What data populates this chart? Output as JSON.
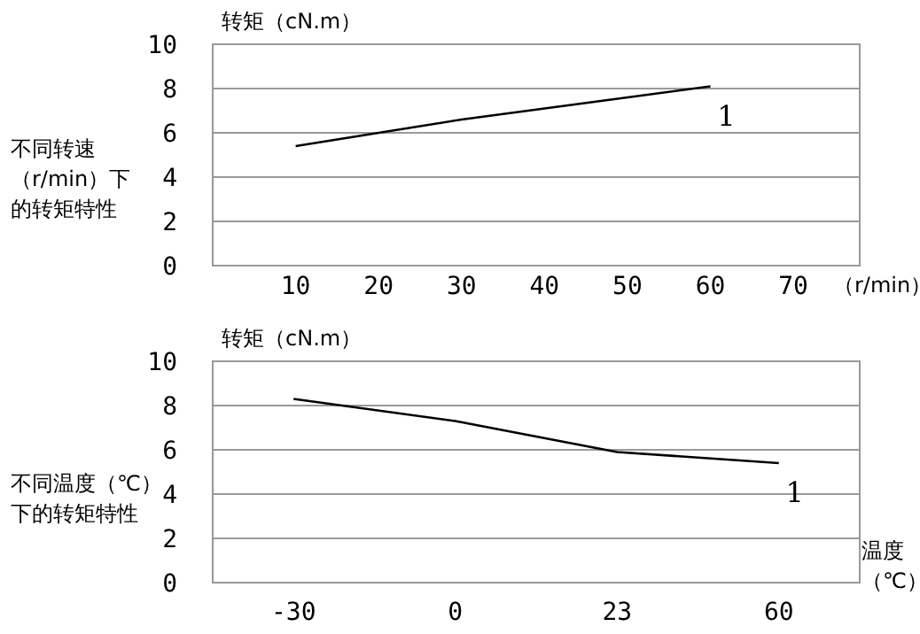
{
  "chart_data": [
    {
      "type": "line",
      "title": "不同转速（r/min）下的转矩特性",
      "ylabel": "转矩（cN.m）",
      "xlabel": "（r/min）",
      "x": [
        10,
        20,
        30,
        40,
        50,
        60
      ],
      "series": [
        {
          "color": "#000000",
          "values": [
            5.4,
            6.0,
            6.6,
            7.1,
            7.6,
            8.1
          ]
        }
      ],
      "xlim": [
        0,
        78
      ],
      "xticks": [
        10,
        20,
        30,
        40,
        50,
        60,
        70
      ],
      "ylim": [
        0,
        10
      ],
      "yticks": [
        0,
        2,
        4,
        6,
        8,
        10
      ],
      "grid": "y",
      "annotations": [
        "1"
      ]
    },
    {
      "type": "line",
      "title": "不同温度（℃）下的转矩特性",
      "ylabel": "转矩（cN.m）",
      "xlabel": "温度（℃）",
      "categories": [
        "-30",
        "0",
        "23",
        "60"
      ],
      "series": [
        {
          "color": "#000000",
          "values": [
            8.3,
            7.3,
            5.9,
            5.4
          ]
        }
      ],
      "ylim": [
        0,
        10
      ],
      "yticks": [
        0,
        2,
        4,
        6,
        8,
        10
      ],
      "grid": "y",
      "annotations": [
        "1"
      ]
    }
  ]
}
